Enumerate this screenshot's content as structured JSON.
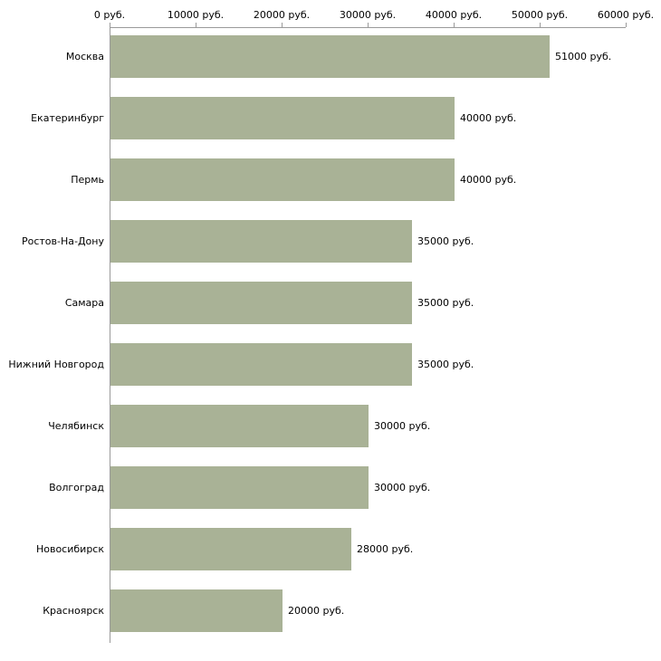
{
  "chart_data": {
    "type": "bar",
    "orientation": "horizontal",
    "title": "",
    "xlabel": "",
    "ylabel": "",
    "xlim": [
      0,
      60000
    ],
    "x_ticks": [
      "0 руб.",
      "10000 руб.",
      "20000 руб.",
      "30000 руб.",
      "40000 руб.",
      "50000 руб.",
      "60000 руб."
    ],
    "categories": [
      "Москва",
      "Екатеринбург",
      "Пермь",
      "Ростов-На-Дону",
      "Самара",
      "Нижний Новгород",
      "Челябинск",
      "Волгоград",
      "Новосибирск",
      "Красноярск"
    ],
    "values": [
      51000,
      40000,
      40000,
      35000,
      35000,
      35000,
      30000,
      30000,
      28000,
      20000
    ],
    "value_labels": [
      "51000 руб.",
      "40000 руб.",
      "40000 руб.",
      "35000 руб.",
      "35000 руб.",
      "35000 руб.",
      "30000 руб.",
      "30000 руб.",
      "28000 руб.",
      "20000 руб."
    ],
    "bar_color": "#a9b296",
    "axis_color": "#9a9a9a",
    "text_color": "#000000",
    "background": "#ffffff",
    "grid": false,
    "legend": false
  }
}
